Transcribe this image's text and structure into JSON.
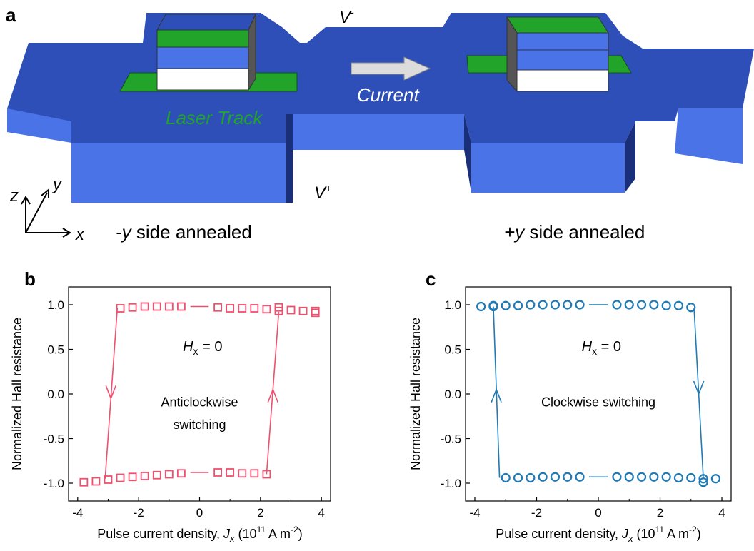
{
  "panel_a": {
    "letter": "a",
    "v_minus": "V",
    "v_minus_sup": "-",
    "v_plus": "V",
    "v_plus_sup": "+",
    "current_label": "Current",
    "laser_label": "Laser Track",
    "axis_z": "z",
    "axis_y": "y",
    "axis_x": "x",
    "left_caption_var": "-y",
    "left_caption_rest": " side annealed",
    "right_caption_var": "+y",
    "right_caption_rest": " side annealed",
    "colors": {
      "track": "#2e4fb8",
      "track_side": "#4a73e8",
      "laser": "#22a32a",
      "current_text": "#ffffff"
    }
  },
  "chart_data": [
    {
      "panel": "b",
      "type": "scatter",
      "ylabel": "Normalized Hall resistance",
      "xlabel_prefix": "Pulse current density, ",
      "xlabel_var": "J",
      "xlabel_sub": "x",
      "xlabel_unit_a": " (10",
      "xlabel_unit_exp": "11",
      "xlabel_unit_b": " A m",
      "xlabel_unit_exp2": "-2",
      "xlabel_unit_c": ")",
      "xlim": [
        -4.3,
        4.3
      ],
      "ylim": [
        -1.2,
        1.2
      ],
      "xticks": [
        "-4",
        "-2",
        "0",
        "2",
        "4"
      ],
      "yticks": [
        "1.0",
        "0.5",
        "0.0",
        "-0.5",
        "-1.0"
      ],
      "xtick_values": [
        -4,
        -2,
        0,
        2,
        4
      ],
      "ytick_values": [
        1.0,
        0.5,
        0.0,
        -0.5,
        -1.0
      ],
      "annotation_h": "H",
      "annotation_h_sub": "x",
      "annotation_h_rest": " = 0",
      "annotation_1": "Anticlockwise",
      "annotation_2": "switching",
      "marker": "square",
      "color": "#f0506e",
      "upper_x": [
        -2.6,
        -2.2,
        -1.8,
        -1.4,
        -1.0,
        -0.6,
        0.6,
        1.0,
        1.4,
        1.8,
        2.2,
        2.6,
        2.6,
        3.0,
        3.4,
        3.8,
        3.8
      ],
      "upper_y": [
        0.96,
        0.97,
        0.98,
        0.98,
        0.98,
        0.98,
        0.97,
        0.96,
        0.96,
        0.96,
        0.95,
        0.97,
        0.93,
        0.94,
        0.93,
        0.93,
        0.91
      ],
      "lower_x": [
        -3.8,
        -3.4,
        -3.0,
        -2.6,
        -2.2,
        -1.8,
        -1.4,
        -1.0,
        -0.6,
        0.6,
        1.0,
        1.4,
        1.8,
        2.2
      ],
      "lower_y": [
        -0.99,
        -0.98,
        -0.96,
        -0.94,
        -0.93,
        -0.92,
        -0.91,
        -0.9,
        -0.89,
        -0.88,
        -0.88,
        -0.89,
        -0.89,
        -0.9
      ],
      "upper_line_x": [
        -0.3,
        0.3
      ],
      "upper_line_y": 0.98,
      "lower_line_x": [
        -0.3,
        0.3
      ],
      "lower_line_y": -0.88,
      "branch_down": {
        "x_top": -2.7,
        "y_top": 0.96,
        "x_bot": -3.1,
        "y_bot": -0.95,
        "arrow_y": -0.05,
        "dir": "down"
      },
      "branch_up": {
        "x_top": 2.6,
        "y_top": 0.92,
        "x_bot": 2.2,
        "y_bot": -0.9,
        "arrow_y": 0.05,
        "dir": "up"
      }
    },
    {
      "panel": "c",
      "type": "scatter",
      "ylabel": "Normalized Hall resistance",
      "xlabel_prefix": "Pulse current density, ",
      "xlabel_var": "J",
      "xlabel_sub": "x",
      "xlabel_unit_a": " (10",
      "xlabel_unit_exp": "11",
      "xlabel_unit_b": " A m",
      "xlabel_unit_exp2": "-2",
      "xlabel_unit_c": ")",
      "xlim": [
        -4.3,
        4.3
      ],
      "ylim": [
        -1.2,
        1.2
      ],
      "xticks": [
        "-4",
        "-2",
        "0",
        "2",
        "4"
      ],
      "yticks": [
        "1.0",
        "0.5",
        "0.0",
        "-0.5",
        "-1.0"
      ],
      "xtick_values": [
        -4,
        -2,
        0,
        2,
        4
      ],
      "ytick_values": [
        1.0,
        0.5,
        0.0,
        -0.5,
        -1.0
      ],
      "annotation_h": "H",
      "annotation_h_sub": "x",
      "annotation_h_rest": " = 0",
      "annotation_1": "Clockwise switching",
      "annotation_2": "",
      "marker": "circle",
      "color": "#1f7ab5",
      "upper_x": [
        -3.8,
        -3.4,
        -3.4,
        -3.0,
        -2.6,
        -2.2,
        -1.8,
        -1.4,
        -1.0,
        -0.6,
        0.6,
        1.0,
        1.4,
        1.8,
        2.2,
        2.6,
        3.0
      ],
      "upper_y": [
        0.98,
        0.99,
        0.98,
        0.99,
        0.99,
        1.0,
        1.0,
        1.0,
        1.0,
        1.0,
        1.0,
        1.0,
        1.0,
        1.0,
        0.99,
        0.99,
        0.97
      ],
      "lower_x": [
        -3.0,
        -2.6,
        -2.2,
        -1.8,
        -1.4,
        -1.0,
        -0.6,
        0.6,
        1.0,
        1.4,
        1.8,
        2.2,
        2.6,
        3.0,
        3.4,
        3.4,
        3.8
      ],
      "lower_y": [
        -0.94,
        -0.94,
        -0.94,
        -0.93,
        -0.93,
        -0.93,
        -0.93,
        -0.93,
        -0.93,
        -0.93,
        -0.93,
        -0.93,
        -0.94,
        -0.94,
        -0.95,
        -0.99,
        -0.95
      ],
      "upper_line_x": [
        -0.3,
        0.3
      ],
      "upper_line_y": 1.0,
      "lower_line_x": [
        -0.3,
        0.3
      ],
      "lower_line_y": -0.93,
      "branch_down": {
        "x_top": 3.1,
        "y_top": 0.96,
        "x_bot": 3.4,
        "y_bot": -0.95,
        "arrow_y": 0.0,
        "dir": "down"
      },
      "branch_up": {
        "x_top": -3.4,
        "y_top": 0.98,
        "x_bot": -3.2,
        "y_bot": -0.94,
        "arrow_y": 0.05,
        "dir": "up"
      }
    }
  ],
  "panel_b_letter": "b",
  "panel_c_letter": "c"
}
